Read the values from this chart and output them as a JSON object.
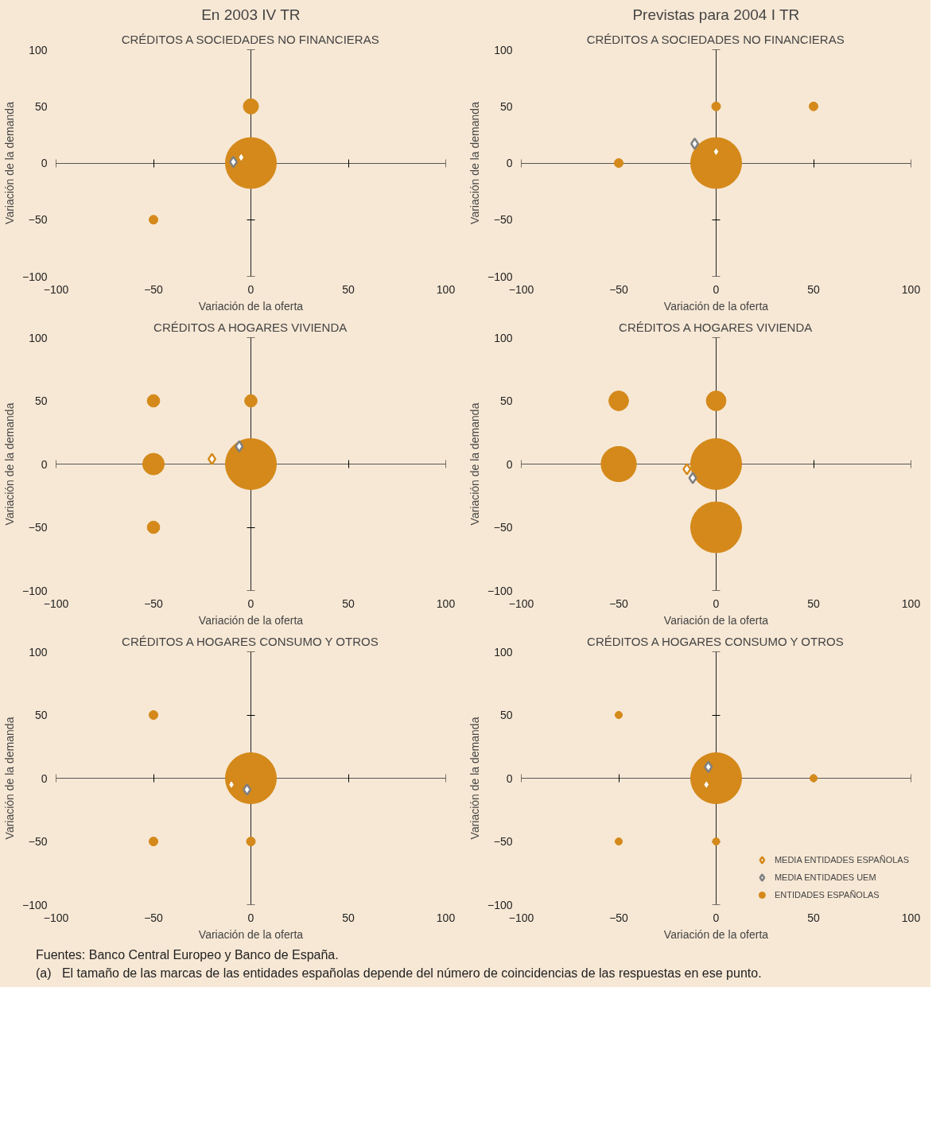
{
  "chart_data": [
    {
      "type": "bubble",
      "subtitle": "En 2003 IV TR",
      "title": "CRÉDITOS A SOCIEDADES NO FINANCIERAS",
      "xlabel": "Variación de la oferta",
      "ylabel": "Variación de la demanda",
      "xlim": [
        -100,
        100
      ],
      "ylim": [
        -100,
        100
      ],
      "xticks": [
        -100,
        -50,
        0,
        50,
        100
      ],
      "yticks": [
        -100,
        -50,
        0,
        50,
        100
      ],
      "series": [
        {
          "color": "#d4891a",
          "x": [
            0,
            0,
            -50
          ],
          "values": [
            0,
            50,
            -50
          ],
          "sizes": [
            1,
            0.09,
            0.03
          ]
        },
        {
          "type": "scatter",
          "marker": "diamond",
          "color": "#d4891a",
          "x": [
            -5
          ],
          "values": [
            5
          ]
        },
        {
          "type": "scatter",
          "marker": "diamond",
          "color": "#808080",
          "x": [
            -9
          ],
          "values": [
            1
          ]
        }
      ]
    },
    {
      "type": "bubble",
      "subtitle": "Previstas para 2004 I TR",
      "title": "CRÉDITOS A SOCIEDADES NO FINANCIERAS",
      "xlabel": "Variación de la oferta",
      "ylabel": "Variación de la demanda",
      "xlim": [
        -100,
        100
      ],
      "ylim": [
        -100,
        100
      ],
      "xticks": [
        -100,
        -50,
        0,
        50,
        100
      ],
      "yticks": [
        -100,
        -50,
        0,
        50,
        100
      ],
      "series": [
        {
          "color": "#d4891a",
          "x": [
            0,
            0,
            50,
            -50
          ],
          "values": [
            0,
            50,
            50,
            0
          ],
          "sizes": [
            1,
            0.03,
            0.03,
            0.03
          ]
        },
        {
          "type": "scatter",
          "marker": "diamond",
          "color": "#d4891a",
          "x": [
            0
          ],
          "values": [
            10
          ]
        },
        {
          "type": "scatter",
          "marker": "diamond",
          "color": "#808080",
          "x": [
            -11
          ],
          "values": [
            17
          ]
        }
      ]
    },
    {
      "type": "bubble",
      "title": "CRÉDITOS A HOGARES VIVIENDA",
      "xlabel": "Variación de la oferta",
      "ylabel": "Variación de la demanda",
      "xlim": [
        -100,
        100
      ],
      "ylim": [
        -100,
        100
      ],
      "xticks": [
        -100,
        -50,
        0,
        50,
        100
      ],
      "yticks": [
        -100,
        -50,
        0,
        50,
        100
      ],
      "series": [
        {
          "color": "#d4891a",
          "x": [
            0,
            -50,
            -50,
            0,
            -50
          ],
          "values": [
            0,
            0,
            50,
            50,
            -50
          ],
          "sizes": [
            1,
            0.18,
            0.06,
            0.06,
            0.06
          ]
        },
        {
          "type": "scatter",
          "marker": "diamond",
          "color": "#d4891a",
          "x": [
            -20
          ],
          "values": [
            4
          ]
        },
        {
          "type": "scatter",
          "marker": "diamond",
          "color": "#808080",
          "x": [
            -6
          ],
          "values": [
            14
          ]
        }
      ]
    },
    {
      "type": "bubble",
      "title": "CRÉDITOS A HOGARES VIVIENDA",
      "xlabel": "Variación de la oferta",
      "ylabel": "Variación de la demanda",
      "xlim": [
        -100,
        100
      ],
      "ylim": [
        -100,
        100
      ],
      "xticks": [
        -100,
        -50,
        0,
        50,
        100
      ],
      "yticks": [
        -100,
        -50,
        0,
        50,
        100
      ],
      "series": [
        {
          "color": "#d4891a",
          "x": [
            0,
            0,
            -50,
            -50,
            0
          ],
          "values": [
            0,
            -50,
            0,
            50,
            50
          ],
          "sizes": [
            1,
            1,
            0.48,
            0.15,
            0.15
          ]
        },
        {
          "type": "scatter",
          "marker": "diamond",
          "color": "#d4891a",
          "x": [
            -15
          ],
          "values": [
            -4
          ]
        },
        {
          "type": "scatter",
          "marker": "diamond",
          "color": "#808080",
          "x": [
            -12
          ],
          "values": [
            -11
          ]
        }
      ]
    },
    {
      "type": "bubble",
      "title": "CRÉDITOS A HOGARES CONSUMO Y OTROS",
      "xlabel": "Variación de la oferta",
      "ylabel": "Variación de la demanda",
      "xlim": [
        -100,
        100
      ],
      "ylim": [
        -100,
        100
      ],
      "xticks": [
        -100,
        -50,
        0,
        50,
        100
      ],
      "yticks": [
        -100,
        -50,
        0,
        50,
        100
      ],
      "series": [
        {
          "color": "#d4891a",
          "x": [
            0,
            -50,
            -50,
            0
          ],
          "values": [
            0,
            50,
            -50,
            -50
          ],
          "sizes": [
            1,
            0.03,
            0.03,
            0.03
          ]
        },
        {
          "type": "scatter",
          "marker": "diamond",
          "color": "#d4891a",
          "x": [
            -10
          ],
          "values": [
            -5
          ]
        },
        {
          "type": "scatter",
          "marker": "diamond",
          "color": "#808080",
          "x": [
            -2
          ],
          "values": [
            -9
          ]
        }
      ]
    },
    {
      "type": "bubble",
      "title": "CRÉDITOS A HOGARES CONSUMO Y OTROS",
      "xlabel": "Variación de la oferta",
      "ylabel": "Variación de la demanda",
      "xlim": [
        -100,
        100
      ],
      "ylim": [
        -100,
        100
      ],
      "xticks": [
        -100,
        -50,
        0,
        50,
        100
      ],
      "yticks": [
        -100,
        -50,
        0,
        50,
        100
      ],
      "legend": "bottom right",
      "annotations": [
        "Fuentes: Banco Central Europeo y Banco de España.",
        "(a)   El tamaño de las marcas de las entidades españolas depende del número de coincidencias de las respuestas en ese punto."
      ],
      "series": [
        {
          "name": "ENTIDADES ESPAÑOLAS",
          "color": "#d4891a",
          "x": [
            0,
            -50,
            -50,
            0,
            50
          ],
          "values": [
            0,
            50,
            -50,
            -50,
            0
          ],
          "sizes": [
            1,
            0.02,
            0.02,
            0.02,
            0.02
          ]
        },
        {
          "type": "scatter",
          "name": "MEDIA ENTIDADES ESPAÑOLAS",
          "marker": "diamond",
          "color": "#d4891a",
          "x": [
            -5
          ],
          "values": [
            -5
          ]
        },
        {
          "type": "scatter",
          "name": "MEDIA ENTIDADES UEM",
          "marker": "diamond",
          "color": "#808080",
          "x": [
            -4
          ],
          "values": [
            9
          ]
        }
      ]
    }
  ]
}
